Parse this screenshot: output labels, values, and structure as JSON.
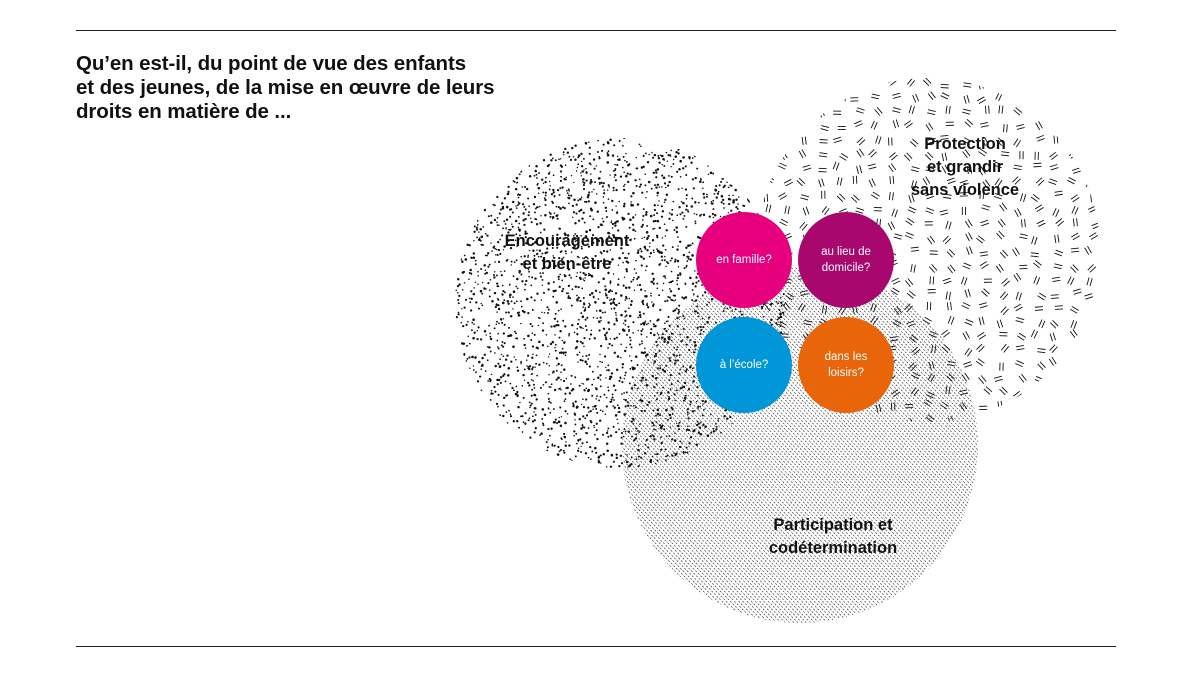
{
  "title": {
    "lines": [
      "Qu’en est-il, du point de vue des enfants",
      "et des jeunes, de la mise en œuvre de leurs",
      "droits en matière de ..."
    ]
  },
  "areas": [
    {
      "lines": [
        "Encouragement",
        "et bien-être"
      ],
      "pattern": "dots"
    },
    {
      "lines": [
        "Protection",
        "et grandir",
        "sans violence"
      ],
      "pattern": "double-dashes"
    },
    {
      "lines": [
        "Participation et",
        "codétermination"
      ],
      "pattern": "diagonal-hatch"
    }
  ],
  "contexts": [
    {
      "lines": [
        "en famille?"
      ],
      "color": "#e6007e"
    },
    {
      "lines": [
        "au lieu de",
        "domicile?"
      ],
      "color": "#a8086e"
    },
    {
      "lines": [
        "à l’école?"
      ],
      "color": "#0096d8"
    },
    {
      "lines": [
        "dans les",
        "loisirs?"
      ],
      "color": "#e8650a"
    }
  ],
  "colors": {
    "rule": "#222222",
    "pattern_ink": "#111111"
  }
}
